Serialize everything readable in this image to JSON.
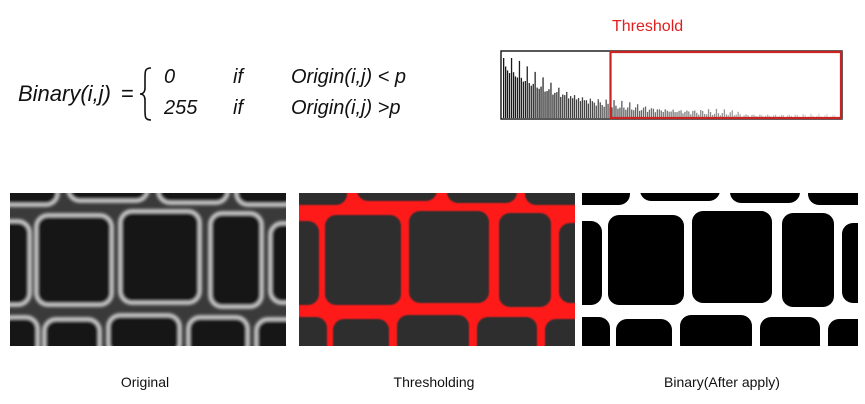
{
  "formula": {
    "lhs": "Binary(i,j)",
    "equals": "=",
    "cases": [
      {
        "value": "0",
        "keyword": "if",
        "condition": "Origin(i,j) < p"
      },
      {
        "value": "255",
        "keyword": "if",
        "condition": "Origin(i,j) >p"
      }
    ]
  },
  "histogram": {
    "label": "Threshold",
    "threshold_fraction": 0.32,
    "colors": {
      "frame": "#111111",
      "threshold": "#cc2222"
    }
  },
  "panels": [
    {
      "caption": "Original"
    },
    {
      "caption": "Thresholding"
    },
    {
      "caption": "Binary(After apply)"
    }
  ],
  "colors": {
    "highlight": "#ff1a1a",
    "threshold_text": "#e01e1e"
  }
}
